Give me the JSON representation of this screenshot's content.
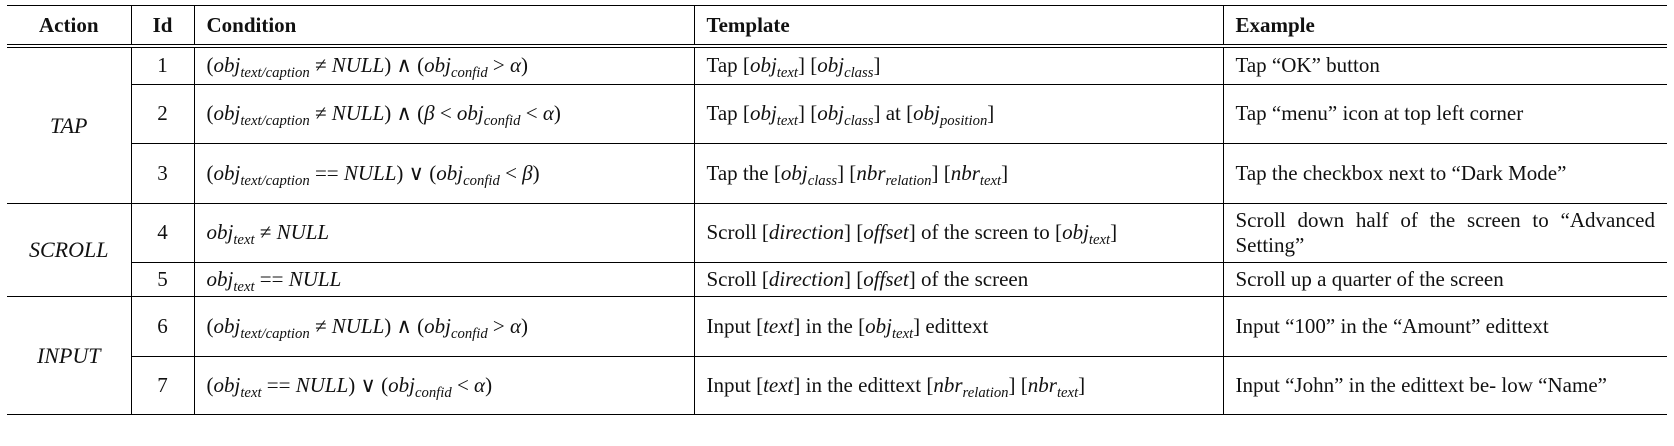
{
  "headers": {
    "action": "Action",
    "id": "Id",
    "condition": "Condition",
    "template": "Template",
    "example": "Example"
  },
  "groups": {
    "tap": "TAP",
    "scroll": "SCROLL",
    "input": "INPUT"
  },
  "rows": [
    {
      "id": "1",
      "condition": [
        [
          "t",
          "("
        ],
        [
          "i",
          "obj"
        ],
        [
          "s",
          "text/caption"
        ],
        [
          "t",
          " ≠ "
        ],
        [
          "i",
          "NULL"
        ],
        [
          "t",
          ") ∧ ("
        ],
        [
          "i",
          "obj"
        ],
        [
          "s",
          "confid"
        ],
        [
          "t",
          " > "
        ],
        [
          "i",
          "α"
        ],
        [
          "t",
          ")"
        ]
      ],
      "template": [
        [
          "t",
          "Tap ["
        ],
        [
          "i",
          "obj"
        ],
        [
          "s",
          "text"
        ],
        [
          "t",
          "] ["
        ],
        [
          "i",
          "obj"
        ],
        [
          "s",
          "class"
        ],
        [
          "t",
          "]"
        ]
      ],
      "example": "Tap “OK” button"
    },
    {
      "id": "2",
      "condition": [
        [
          "t",
          "("
        ],
        [
          "i",
          "obj"
        ],
        [
          "s",
          "text/caption"
        ],
        [
          "t",
          " ≠ "
        ],
        [
          "i",
          "NULL"
        ],
        [
          "t",
          ") ∧ ("
        ],
        [
          "i",
          "β"
        ],
        [
          "t",
          " < "
        ],
        [
          "i",
          "obj"
        ],
        [
          "s",
          "confid"
        ],
        [
          "t",
          " < "
        ],
        [
          "i",
          "α"
        ],
        [
          "t",
          ")"
        ]
      ],
      "template": [
        [
          "t",
          "Tap ["
        ],
        [
          "i",
          "obj"
        ],
        [
          "s",
          "text"
        ],
        [
          "t",
          "] ["
        ],
        [
          "i",
          "obj"
        ],
        [
          "s",
          "class"
        ],
        [
          "t",
          "] at ["
        ],
        [
          "i",
          "obj"
        ],
        [
          "s",
          "position"
        ],
        [
          "t",
          "]"
        ]
      ],
      "example": "Tap “menu” icon at top left corner"
    },
    {
      "id": "3",
      "condition": [
        [
          "t",
          "("
        ],
        [
          "i",
          "obj"
        ],
        [
          "s",
          "text/caption"
        ],
        [
          "t",
          " == "
        ],
        [
          "i",
          "NULL"
        ],
        [
          "t",
          ") ∨ ("
        ],
        [
          "i",
          "obj"
        ],
        [
          "s",
          "confid"
        ],
        [
          "t",
          " < "
        ],
        [
          "i",
          "β"
        ],
        [
          "t",
          ")"
        ]
      ],
      "template": [
        [
          "t",
          "Tap the ["
        ],
        [
          "i",
          "obj"
        ],
        [
          "s",
          "class"
        ],
        [
          "t",
          "] ["
        ],
        [
          "i",
          "nbr"
        ],
        [
          "s",
          "relation"
        ],
        [
          "t",
          "] ["
        ],
        [
          "i",
          "nbr"
        ],
        [
          "s",
          "text"
        ],
        [
          "t",
          "]"
        ]
      ],
      "example": "Tap the checkbox next to “Dark Mode”"
    },
    {
      "id": "4",
      "condition": [
        [
          "i",
          "obj"
        ],
        [
          "s",
          "text"
        ],
        [
          "t",
          " ≠ "
        ],
        [
          "i",
          "NULL"
        ]
      ],
      "template": [
        [
          "t",
          "Scroll ["
        ],
        [
          "i",
          "direction"
        ],
        [
          "t",
          "] ["
        ],
        [
          "i",
          "offset"
        ],
        [
          "t",
          "] of the screen to ["
        ],
        [
          "i",
          "obj"
        ],
        [
          "s",
          "text"
        ],
        [
          "t",
          "]"
        ]
      ],
      "example": "Scroll down half of the screen to “Advanced Setting”"
    },
    {
      "id": "5",
      "condition": [
        [
          "i",
          "obj"
        ],
        [
          "s",
          "text"
        ],
        [
          "t",
          " == "
        ],
        [
          "i",
          "NULL"
        ]
      ],
      "template": [
        [
          "t",
          "Scroll ["
        ],
        [
          "i",
          "direction"
        ],
        [
          "t",
          "] ["
        ],
        [
          "i",
          "offset"
        ],
        [
          "t",
          "] of the screen"
        ]
      ],
      "example": "Scroll up a quarter of the screen"
    },
    {
      "id": "6",
      "condition": [
        [
          "t",
          "("
        ],
        [
          "i",
          "obj"
        ],
        [
          "s",
          "text/caption"
        ],
        [
          "t",
          " ≠ "
        ],
        [
          "i",
          "NULL"
        ],
        [
          "t",
          ") ∧ ("
        ],
        [
          "i",
          "obj"
        ],
        [
          "s",
          "confid"
        ],
        [
          "t",
          " > "
        ],
        [
          "i",
          "α"
        ],
        [
          "t",
          ")"
        ]
      ],
      "template": [
        [
          "t",
          "Input ["
        ],
        [
          "i",
          "text"
        ],
        [
          "t",
          "] in the ["
        ],
        [
          "i",
          "obj"
        ],
        [
          "s",
          "text"
        ],
        [
          "t",
          "] edittext"
        ]
      ],
      "example": "Input “100” in the “Amount” edittext"
    },
    {
      "id": "7",
      "condition": [
        [
          "t",
          "("
        ],
        [
          "i",
          "obj"
        ],
        [
          "s",
          "text"
        ],
        [
          "t",
          " == "
        ],
        [
          "i",
          "NULL"
        ],
        [
          "t",
          ") ∨ ("
        ],
        [
          "i",
          "obj"
        ],
        [
          "s",
          "confid"
        ],
        [
          "t",
          " < "
        ],
        [
          "i",
          "α"
        ],
        [
          "t",
          ")"
        ]
      ],
      "template": [
        [
          "t",
          "Input ["
        ],
        [
          "i",
          "text"
        ],
        [
          "t",
          "] in the edittext ["
        ],
        [
          "i",
          "nbr"
        ],
        [
          "s",
          "relation"
        ],
        [
          "t",
          "] ["
        ],
        [
          "i",
          "nbr"
        ],
        [
          "s",
          "text"
        ],
        [
          "t",
          "]"
        ]
      ],
      "example": "Input “John” in the edittext be- low “Name”"
    }
  ]
}
